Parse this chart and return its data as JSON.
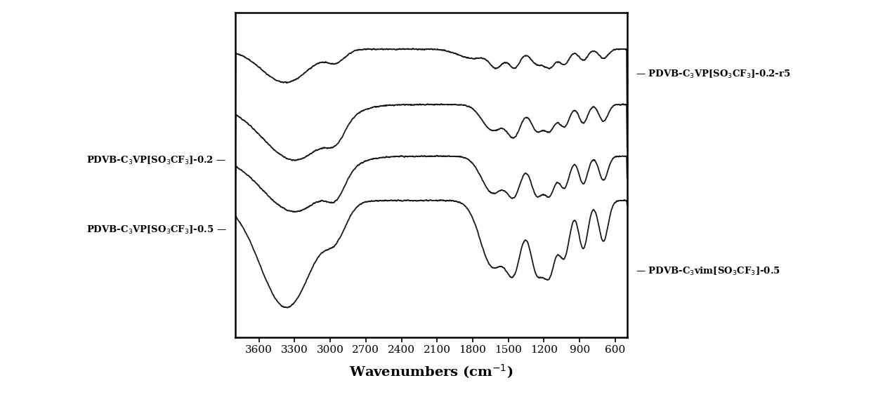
{
  "title": "",
  "xlabel": "Wavenumbers (cm$^{-1}$)",
  "ylabel": "",
  "xlim": [
    3800,
    500
  ],
  "xticks": [
    3600,
    3300,
    3000,
    2700,
    2400,
    2100,
    1800,
    1500,
    1200,
    900,
    600
  ],
  "bg_color": "#ffffff",
  "line_color": "#1a1a1a",
  "label_top_right": "PDVB-C$_3$VP[SO$_3$CF$_3$]-0.2-r5",
  "label_left_top": "PDVB-C$_3$VP[SO$_3$CF$_3$]-0.2",
  "label_left_bottom": "PDVB-C$_3$VP[SO$_3$CF$_3$]-0.5",
  "label_bottom_right": "PDVB-C$_3$vim[SO$_3$CF$_3$]-0.5",
  "figsize": [
    12.4,
    5.86
  ],
  "dpi": 100
}
